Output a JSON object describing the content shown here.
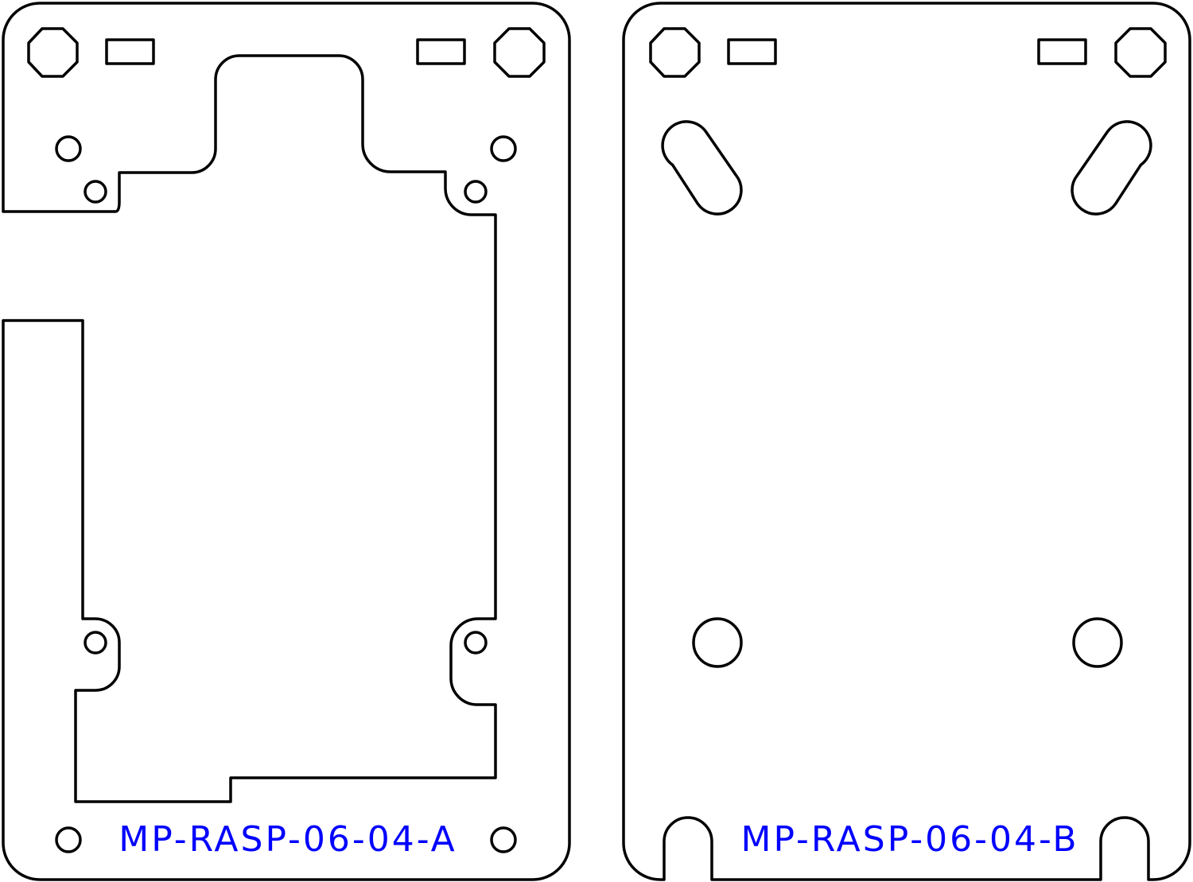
{
  "drawing": {
    "parts": [
      {
        "id": "A",
        "label": "MP-RASP-06-04-A"
      },
      {
        "id": "B",
        "label": "MP-RASP-06-04-B"
      }
    ],
    "colors": {
      "background": "#ffffff",
      "outline": "#000000",
      "label_text": "#0000ff"
    }
  }
}
